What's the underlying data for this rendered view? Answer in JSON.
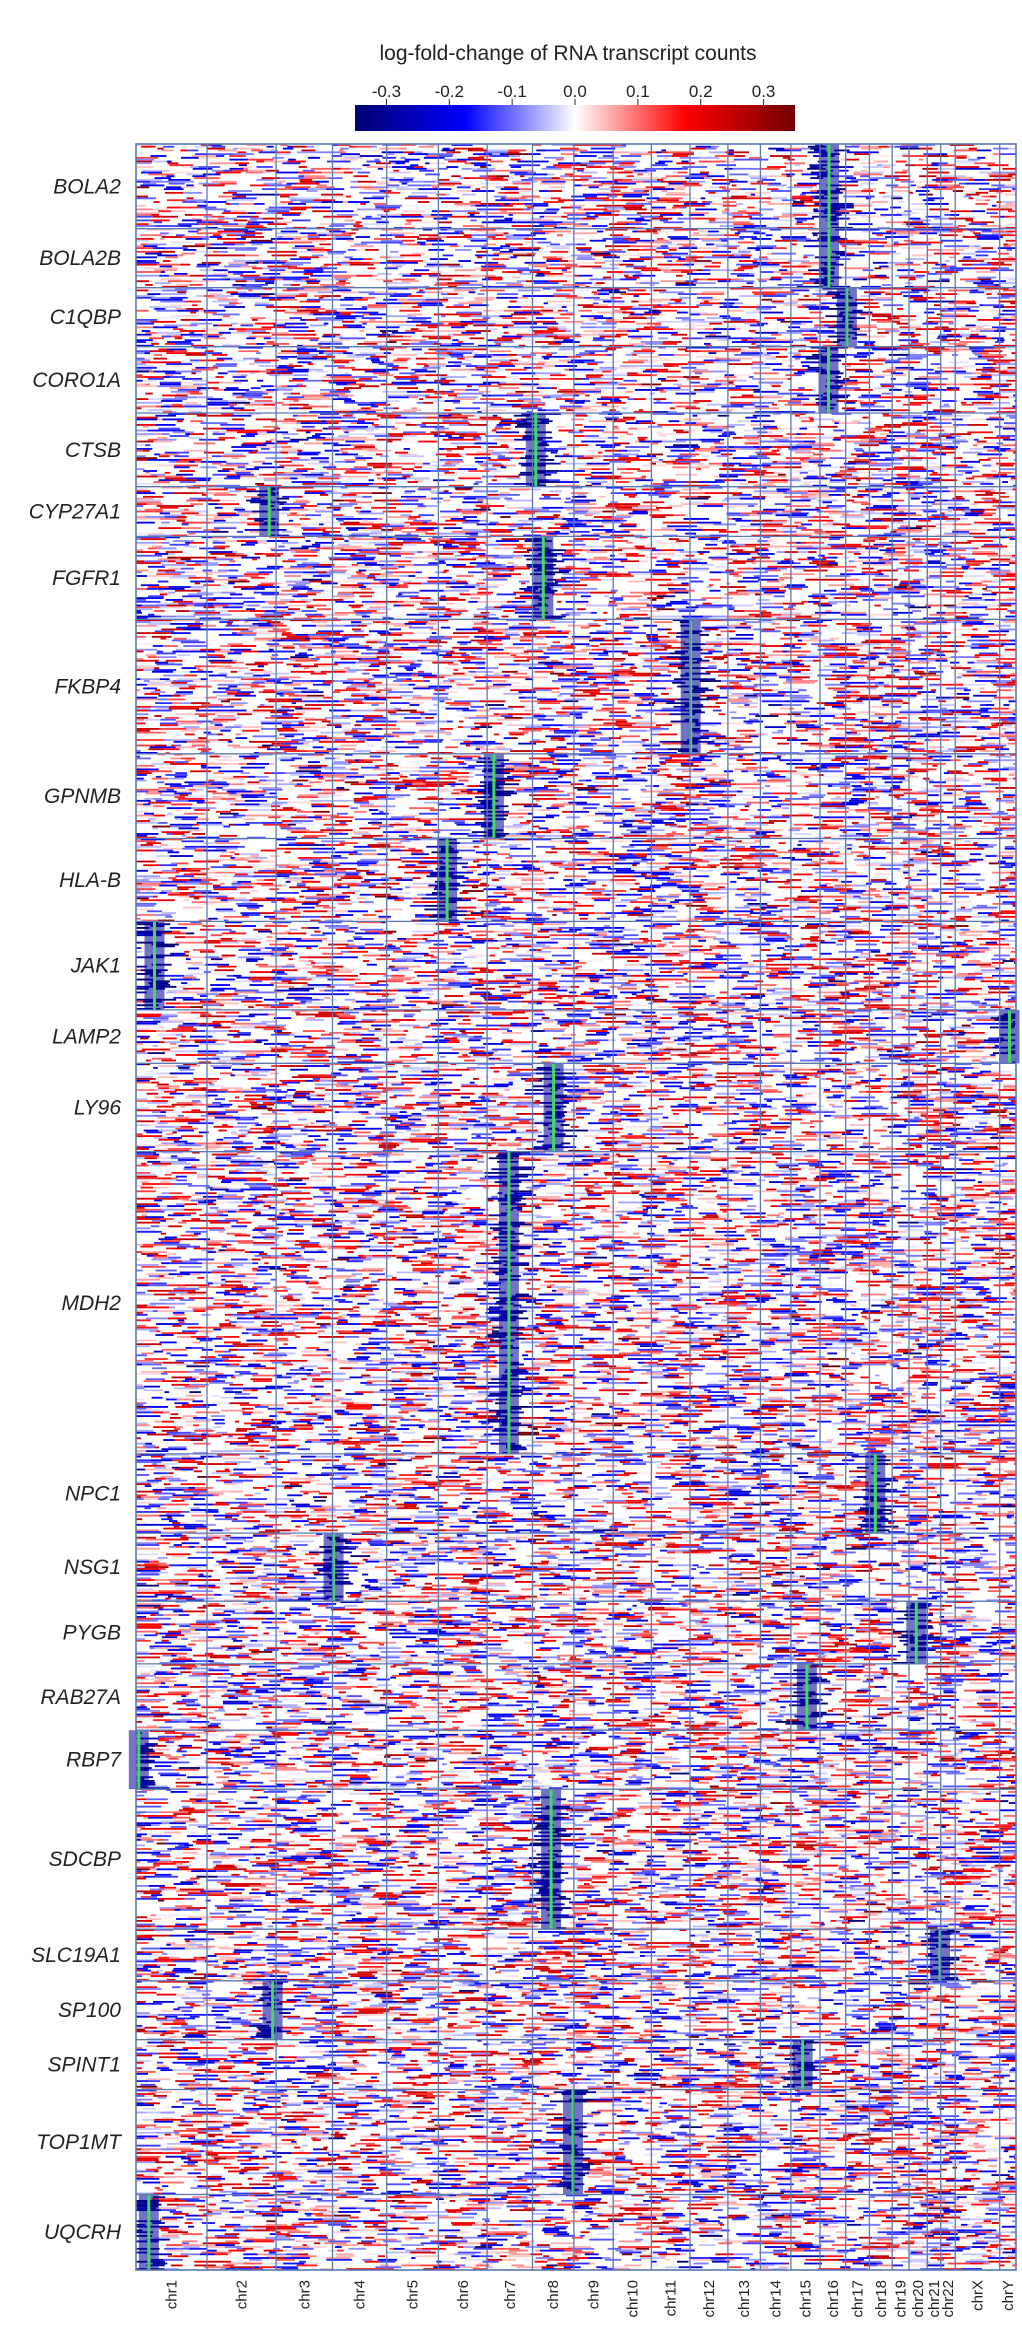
{
  "chart_data": {
    "type": "heatmap",
    "colorbar": {
      "title": "log-fold-change of RNA transcript counts",
      "ticks": [
        "-0.3",
        "-0.2",
        "-0.1",
        "0.0",
        "0.1",
        "0.2",
        "0.3"
      ],
      "range": [
        -0.35,
        0.35
      ],
      "colors": [
        "#00006e",
        "#0000ff",
        "#ffffff",
        "#ff0000",
        "#730000"
      ]
    },
    "chromosomes": [
      {
        "name": "chr1",
        "size": 249
      },
      {
        "name": "chr2",
        "size": 242
      },
      {
        "name": "chr3",
        "size": 198
      },
      {
        "name": "chr4",
        "size": 190
      },
      {
        "name": "chr5",
        "size": 181
      },
      {
        "name": "chr6",
        "size": 171
      },
      {
        "name": "chr7",
        "size": 159
      },
      {
        "name": "chr8",
        "size": 145
      },
      {
        "name": "chr9",
        "size": 138
      },
      {
        "name": "chr10",
        "size": 134
      },
      {
        "name": "chr11",
        "size": 135
      },
      {
        "name": "chr12",
        "size": 133
      },
      {
        "name": "chr13",
        "size": 114
      },
      {
        "name": "chr14",
        "size": 107
      },
      {
        "name": "chr15",
        "size": 102
      },
      {
        "name": "chr16",
        "size": 90
      },
      {
        "name": "chr17",
        "size": 83
      },
      {
        "name": "chr18",
        "size": 80
      },
      {
        "name": "chr19",
        "size": 59
      },
      {
        "name": "chr20",
        "size": 64
      },
      {
        "name": "chr21",
        "size": 47
      },
      {
        "name": "chr22",
        "size": 51
      },
      {
        "name": "chrX",
        "size": 156
      },
      {
        "name": "chrY",
        "size": 57
      }
    ],
    "genes": [
      {
        "name": "BOLA2",
        "cells": 46,
        "chr": "chr16",
        "pos": 0.35
      },
      {
        "name": "BOLA2B",
        "cells": 32,
        "chr": "chr16",
        "pos": 0.35
      },
      {
        "name": "C1QBP",
        "cells": 32,
        "chr": "chr17",
        "pos": 0.05
      },
      {
        "name": "CORO1A",
        "cells": 36,
        "chr": "chr16",
        "pos": 0.33
      },
      {
        "name": "CTSB",
        "cells": 40,
        "chr": "chr8",
        "pos": 0.08
      },
      {
        "name": "CYP27A1",
        "cells": 27,
        "chr": "chr2",
        "pos": 0.9
      },
      {
        "name": "FGFR1",
        "cells": 45,
        "chr": "chr8",
        "pos": 0.26
      },
      {
        "name": "FKBP4",
        "cells": 73,
        "chr": "chr12",
        "pos": 0.02
      },
      {
        "name": "GPNMB",
        "cells": 46,
        "chr": "chr7",
        "pos": 0.15
      },
      {
        "name": "HLA-B",
        "cells": 45,
        "chr": "chr6",
        "pos": 0.18
      },
      {
        "name": "JAK1",
        "cells": 48,
        "chr": "chr1",
        "pos": 0.26
      },
      {
        "name": "LAMP2",
        "cells": 29,
        "chr": "chrY",
        "pos": 0.6
      },
      {
        "name": "LY96",
        "cells": 48,
        "chr": "chr8",
        "pos": 0.51
      },
      {
        "name": "MDH2",
        "cells": 164,
        "chr": "chr7",
        "pos": 0.48
      },
      {
        "name": "NPC1",
        "cells": 43,
        "chr": "chr18",
        "pos": 0.26
      },
      {
        "name": "NSG1",
        "cells": 37,
        "chr": "chr4",
        "pos": 0.02
      },
      {
        "name": "PYGB",
        "cells": 34,
        "chr": "chr20",
        "pos": 0.4
      },
      {
        "name": "RAB27A",
        "cells": 36,
        "chr": "chr15",
        "pos": 0.55
      },
      {
        "name": "RBP7",
        "cells": 32,
        "chr": "chr1",
        "pos": 0.04
      },
      {
        "name": "SDCBP",
        "cells": 76,
        "chr": "chr8",
        "pos": 0.45
      },
      {
        "name": "SLC19A1",
        "cells": 28,
        "chr": "chr21",
        "pos": 0.95
      },
      {
        "name": "SP100",
        "cells": 32,
        "chr": "chr2",
        "pos": 0.95
      },
      {
        "name": "SPINT1",
        "cells": 27,
        "chr": "chr15",
        "pos": 0.4
      },
      {
        "name": "TOP1MT",
        "cells": 57,
        "chr": "chr8",
        "pos": 0.98
      },
      {
        "name": "UQCRH",
        "cells": 41,
        "chr": "chr1",
        "pos": 0.18
      }
    ],
    "target_marker_color": "#3ddc5a",
    "grid_color": "#5a78b4",
    "xlabel": "",
    "ylabel": ""
  }
}
